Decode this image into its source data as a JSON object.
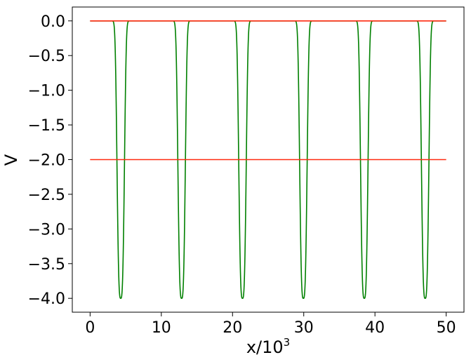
{
  "chart_data": {
    "type": "line",
    "xlabel": "x/10",
    "xlabel_exponent": "3",
    "ylabel": "V",
    "xlim": [
      -2.5,
      52.5
    ],
    "ylim": [
      -4.2,
      0.2
    ],
    "x_ticks": [
      0,
      10,
      20,
      30,
      40,
      50
    ],
    "x_tick_labels": [
      "0",
      "10",
      "20",
      "30",
      "40",
      "50"
    ],
    "y_ticks": [
      0.0,
      -0.5,
      -1.0,
      -1.5,
      -2.0,
      -2.5,
      -3.0,
      -3.5,
      -4.0
    ],
    "y_tick_labels": [
      "0.0",
      "−0.5",
      "−1.0",
      "−1.5",
      "−2.0",
      "−2.5",
      "−3.0",
      "−3.5",
      "−4.0"
    ],
    "grid": false,
    "series": [
      {
        "color": "#008000",
        "well_centers": [
          4.3,
          12.85,
          21.4,
          29.95,
          38.5,
          47.05
        ],
        "well_depth": -4.0,
        "well_width": 0.6,
        "x_range": [
          0,
          50
        ]
      },
      {
        "color": "#ff2a10",
        "x": [
          0,
          50
        ],
        "y": [
          0.0,
          0.0
        ]
      },
      {
        "color": "#ff2a10",
        "x": [
          0,
          50
        ],
        "y": [
          -2.0,
          -2.0
        ]
      }
    ]
  }
}
